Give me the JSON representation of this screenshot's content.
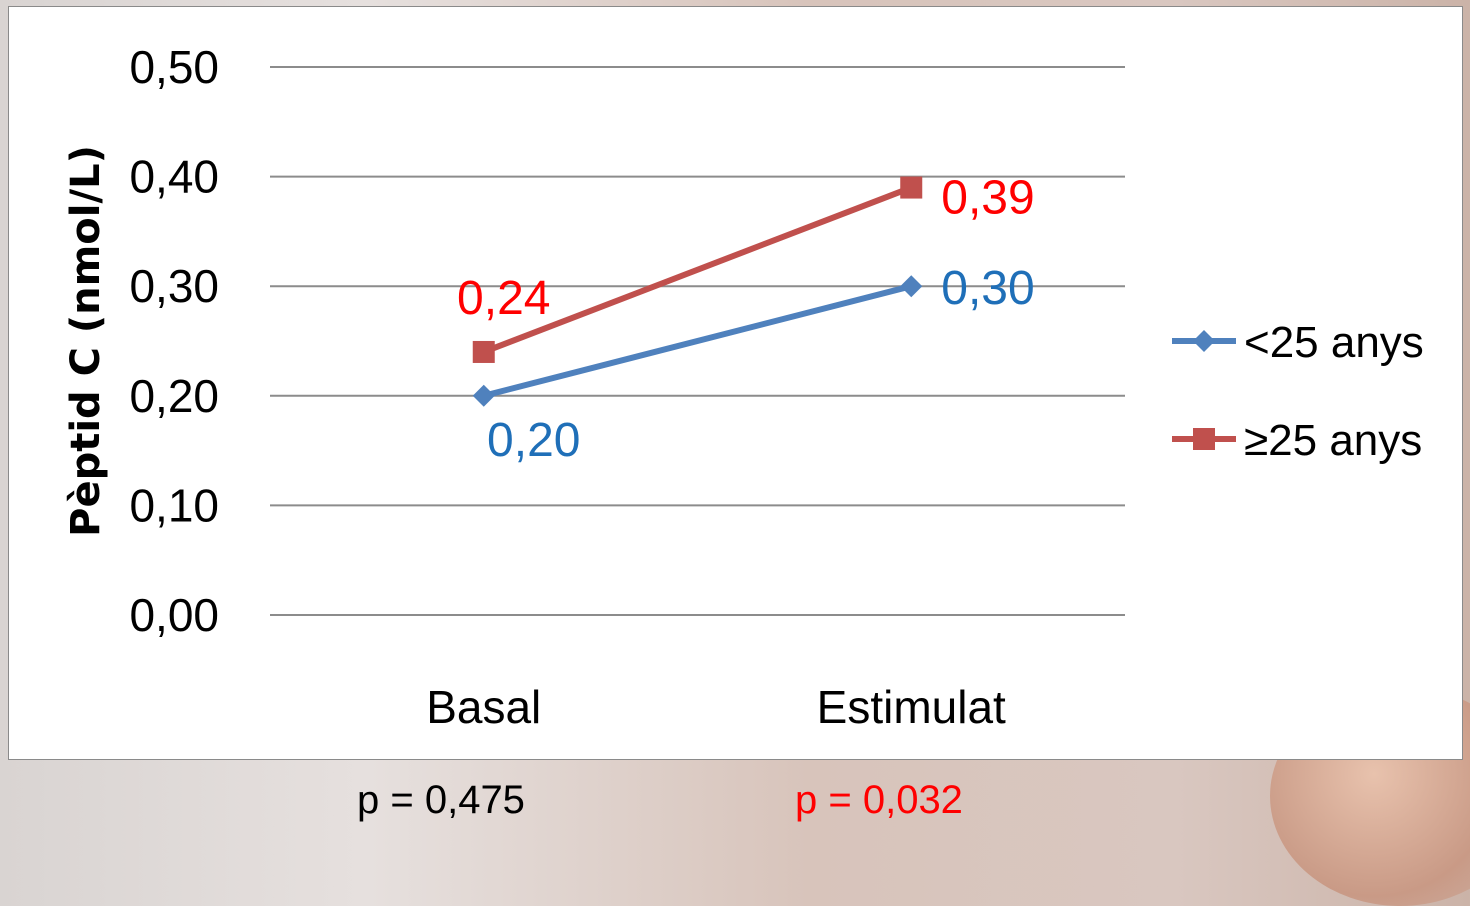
{
  "chart_data": {
    "type": "line",
    "categories": [
      "Basal",
      "Estimulat"
    ],
    "ylabel": "Pèptid C (nmol/L)",
    "ylim": [
      0,
      0.5
    ],
    "yticks": [
      "0,00",
      "0,10",
      "0,20",
      "0,30",
      "0,40",
      "0,50"
    ],
    "grid": true,
    "legend_position": "right",
    "series": [
      {
        "name": "<25 anys",
        "values": [
          0.2,
          0.3
        ],
        "labels": [
          "0,20",
          "0,30"
        ],
        "color": "#4f81bd",
        "label_color": "#1f6fb8",
        "marker": "diamond"
      },
      {
        "name": "≥25 anys",
        "values": [
          0.24,
          0.39
        ],
        "labels": [
          "0,24",
          "0,39"
        ],
        "color": "#c0504d",
        "label_color": "#ff0000",
        "marker": "square"
      }
    ]
  },
  "annotations": {
    "p_basal": "p = 0,475",
    "p_estimulat": "p = 0,032",
    "p_basal_color": "#000000",
    "p_estimulat_color": "#ff0000"
  }
}
